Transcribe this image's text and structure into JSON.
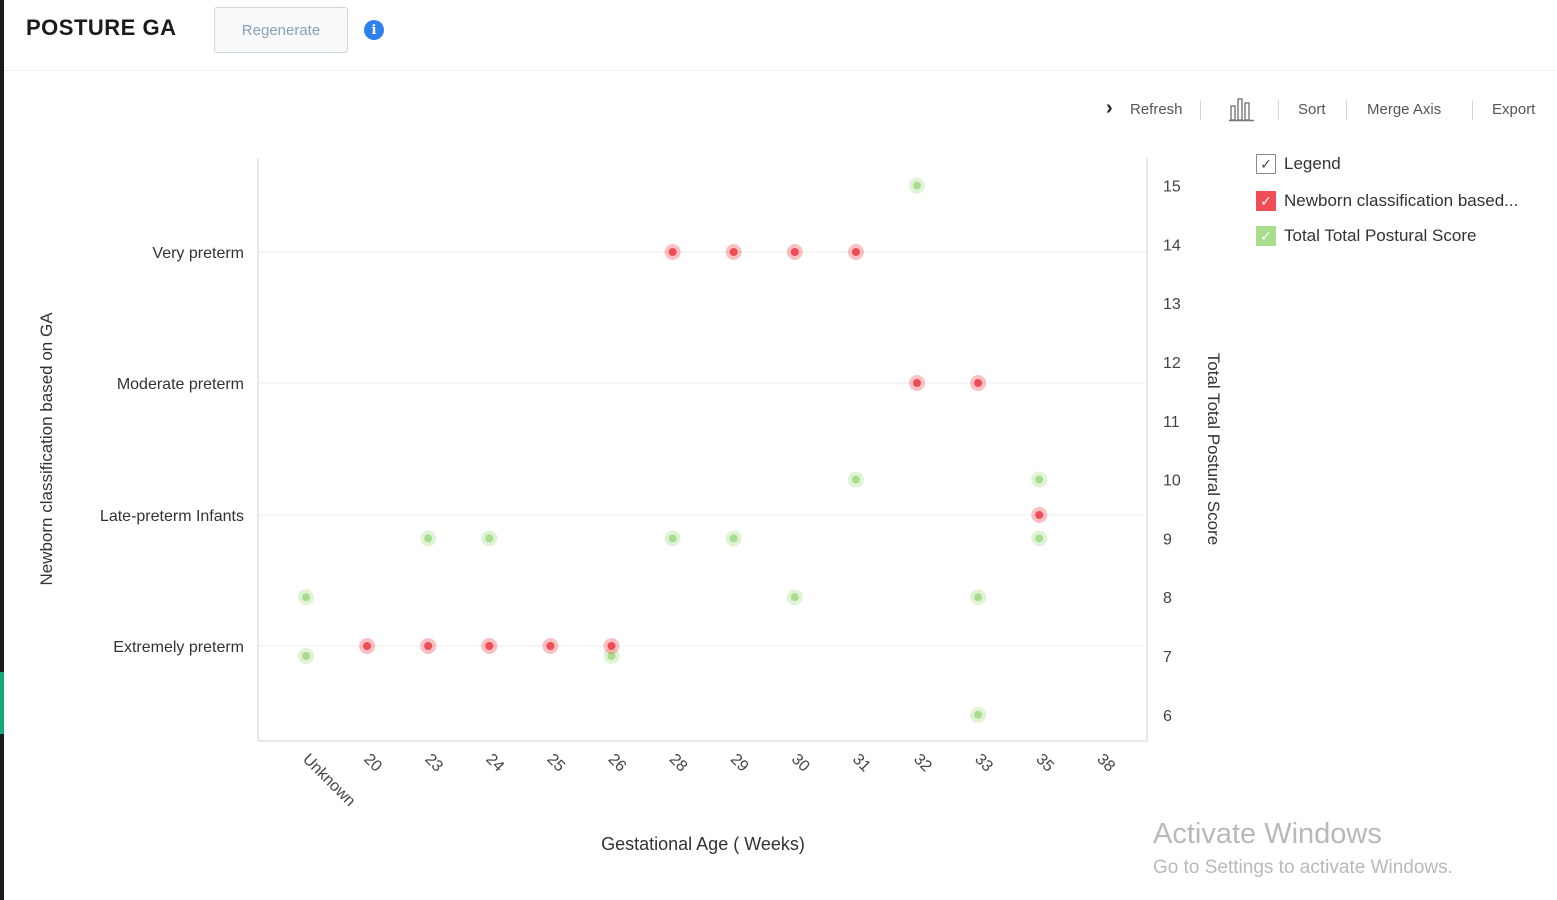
{
  "header": {
    "title": "POSTURE GA",
    "regenerate_label": "Regenerate"
  },
  "toolbar": {
    "refresh_label": "Refresh",
    "sort_label": "Sort",
    "merge_axis_label": "Merge Axis",
    "export_label": "Export"
  },
  "legend": {
    "title": "Legend",
    "items": [
      {
        "label": "Newborn classification based...",
        "color": "#ee4d55"
      },
      {
        "label": "Total Total Postural Score",
        "color": "#a8dd8c"
      }
    ]
  },
  "watermark": {
    "line1": "Activate Windows",
    "line2": "Go to Settings to activate Windows."
  },
  "chart_data": {
    "type": "scatter",
    "xlabel": "Gestational Age ( Weeks)",
    "ylabel_left": "Newborn classification based on GA",
    "ylabel_right": "Total Total Postural Score",
    "categories": [
      "Unknown",
      "20",
      "23",
      "24",
      "25",
      "26",
      "28",
      "29",
      "30",
      "31",
      "32",
      "33",
      "35",
      "38"
    ],
    "left_categories": [
      "Extremely preterm",
      "Late-preterm Infants",
      "Moderate preterm",
      "Very preterm"
    ],
    "right_ylim": [
      5.5,
      15.5
    ],
    "right_ticks": [
      6,
      7,
      8,
      9,
      10,
      11,
      12,
      13,
      14,
      15
    ],
    "grid": "horizontal",
    "legend_position": "right",
    "series": [
      {
        "name": "Newborn classification based on GA",
        "color": "#ee4d55",
        "points": [
          {
            "x": "20",
            "y": "Extremely preterm"
          },
          {
            "x": "23",
            "y": "Extremely preterm"
          },
          {
            "x": "24",
            "y": "Extremely preterm"
          },
          {
            "x": "25",
            "y": "Extremely preterm"
          },
          {
            "x": "26",
            "y": "Extremely preterm"
          },
          {
            "x": "28",
            "y": "Very preterm"
          },
          {
            "x": "29",
            "y": "Very preterm"
          },
          {
            "x": "30",
            "y": "Very preterm"
          },
          {
            "x": "31",
            "y": "Very preterm"
          },
          {
            "x": "32",
            "y": "Moderate preterm"
          },
          {
            "x": "33",
            "y": "Moderate preterm"
          },
          {
            "x": "35",
            "y": "Late-preterm Infants"
          }
        ]
      },
      {
        "name": "Total Total Postural Score",
        "color": "#a8dd8c",
        "points": [
          {
            "x": "Unknown",
            "y": 8
          },
          {
            "x": "Unknown",
            "y": 7
          },
          {
            "x": "23",
            "y": 9
          },
          {
            "x": "24",
            "y": 9
          },
          {
            "x": "26",
            "y": 7
          },
          {
            "x": "28",
            "y": 9
          },
          {
            "x": "29",
            "y": 9
          },
          {
            "x": "30",
            "y": 8
          },
          {
            "x": "31",
            "y": 10
          },
          {
            "x": "32",
            "y": 15
          },
          {
            "x": "33",
            "y": 8
          },
          {
            "x": "33",
            "y": 6
          },
          {
            "x": "35",
            "y": 10
          },
          {
            "x": "35",
            "y": 9
          }
        ]
      }
    ]
  }
}
